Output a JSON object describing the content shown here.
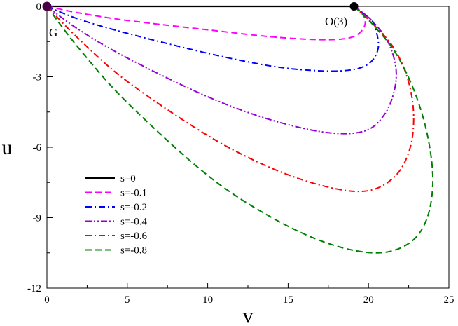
{
  "chart_data": {
    "type": "line",
    "xlabel": "v",
    "ylabel": "u",
    "xlim": [
      0,
      25
    ],
    "ylim": [
      -12,
      0
    ],
    "xticks": [
      0,
      5,
      10,
      15,
      20,
      25
    ],
    "yticks": [
      0,
      -3,
      -6,
      -9,
      -12
    ],
    "xtick_labels": [
      "0",
      "5",
      "10",
      "15",
      "20",
      "25"
    ],
    "ytick_labels": [
      "0",
      "-3",
      "-6",
      "-9",
      "-12"
    ],
    "legend_position": "lower-left",
    "annotations": [
      {
        "text": "G",
        "x": 0,
        "y": 0
      },
      {
        "text": "O(3)",
        "x": 19.1,
        "y": 0
      }
    ],
    "points": [
      {
        "name": "G",
        "x": 0,
        "y": 0
      },
      {
        "name": "O(3)",
        "x": 19.1,
        "y": 0
      }
    ],
    "series": [
      {
        "name": "s=0",
        "color": "#000000",
        "dash": "solid",
        "x": [
          0,
          19.1
        ],
        "y": [
          0,
          0
        ]
      },
      {
        "name": "s=-0.1",
        "color": "#ff00ff",
        "dash": "dash",
        "x": [
          0,
          2,
          5,
          10,
          14,
          17,
          18.7,
          19.5,
          19.8,
          19.6,
          19.1
        ],
        "y": [
          0,
          -0.28,
          -0.6,
          -1.0,
          -1.3,
          -1.42,
          -1.36,
          -1.1,
          -0.7,
          -0.3,
          0
        ]
      },
      {
        "name": "s=-0.2",
        "color": "#0000ff",
        "dash": "dashdot",
        "x": [
          0,
          2,
          5,
          10,
          14,
          17,
          19,
          20.1,
          20.6,
          20.5,
          20.2,
          19.1
        ],
        "y": [
          0,
          -0.55,
          -1.15,
          -2.0,
          -2.55,
          -2.75,
          -2.7,
          -2.4,
          -1.8,
          -1.1,
          -0.6,
          0
        ]
      },
      {
        "name": "s=-0.4",
        "color": "#9400d3",
        "dash": "dashdotdot",
        "x": [
          0,
          2,
          5,
          10,
          14,
          17.5,
          19.8,
          21.0,
          21.6,
          21.7,
          21.2,
          20.2,
          19.1
        ],
        "y": [
          0,
          -1.0,
          -2.2,
          -3.85,
          -4.85,
          -5.38,
          -5.3,
          -4.6,
          -3.6,
          -2.6,
          -1.5,
          -0.6,
          0
        ]
      },
      {
        "name": "s=-0.6",
        "color": "#ff0000",
        "dash": "dashdot",
        "x": [
          0,
          2,
          5,
          10,
          14,
          17.5,
          20,
          21.7,
          22.6,
          22.8,
          22.4,
          21.5,
          20.2,
          19.1
        ],
        "y": [
          0,
          -1.4,
          -3.2,
          -5.5,
          -6.9,
          -7.7,
          -7.85,
          -7.2,
          -6.0,
          -4.5,
          -3.0,
          -1.7,
          -0.7,
          0
        ]
      },
      {
        "name": "s=-0.8",
        "color": "#008000",
        "dash": "dash",
        "x": [
          0,
          2,
          5,
          10,
          14,
          17.5,
          20.5,
          22.5,
          23.6,
          24.0,
          23.7,
          22.9,
          21.7,
          20.3,
          19.1
        ],
        "y": [
          0,
          -1.8,
          -4.1,
          -7.2,
          -9.0,
          -10.1,
          -10.5,
          -10.1,
          -9.1,
          -7.5,
          -5.6,
          -3.7,
          -2.0,
          -0.8,
          0
        ]
      }
    ]
  }
}
